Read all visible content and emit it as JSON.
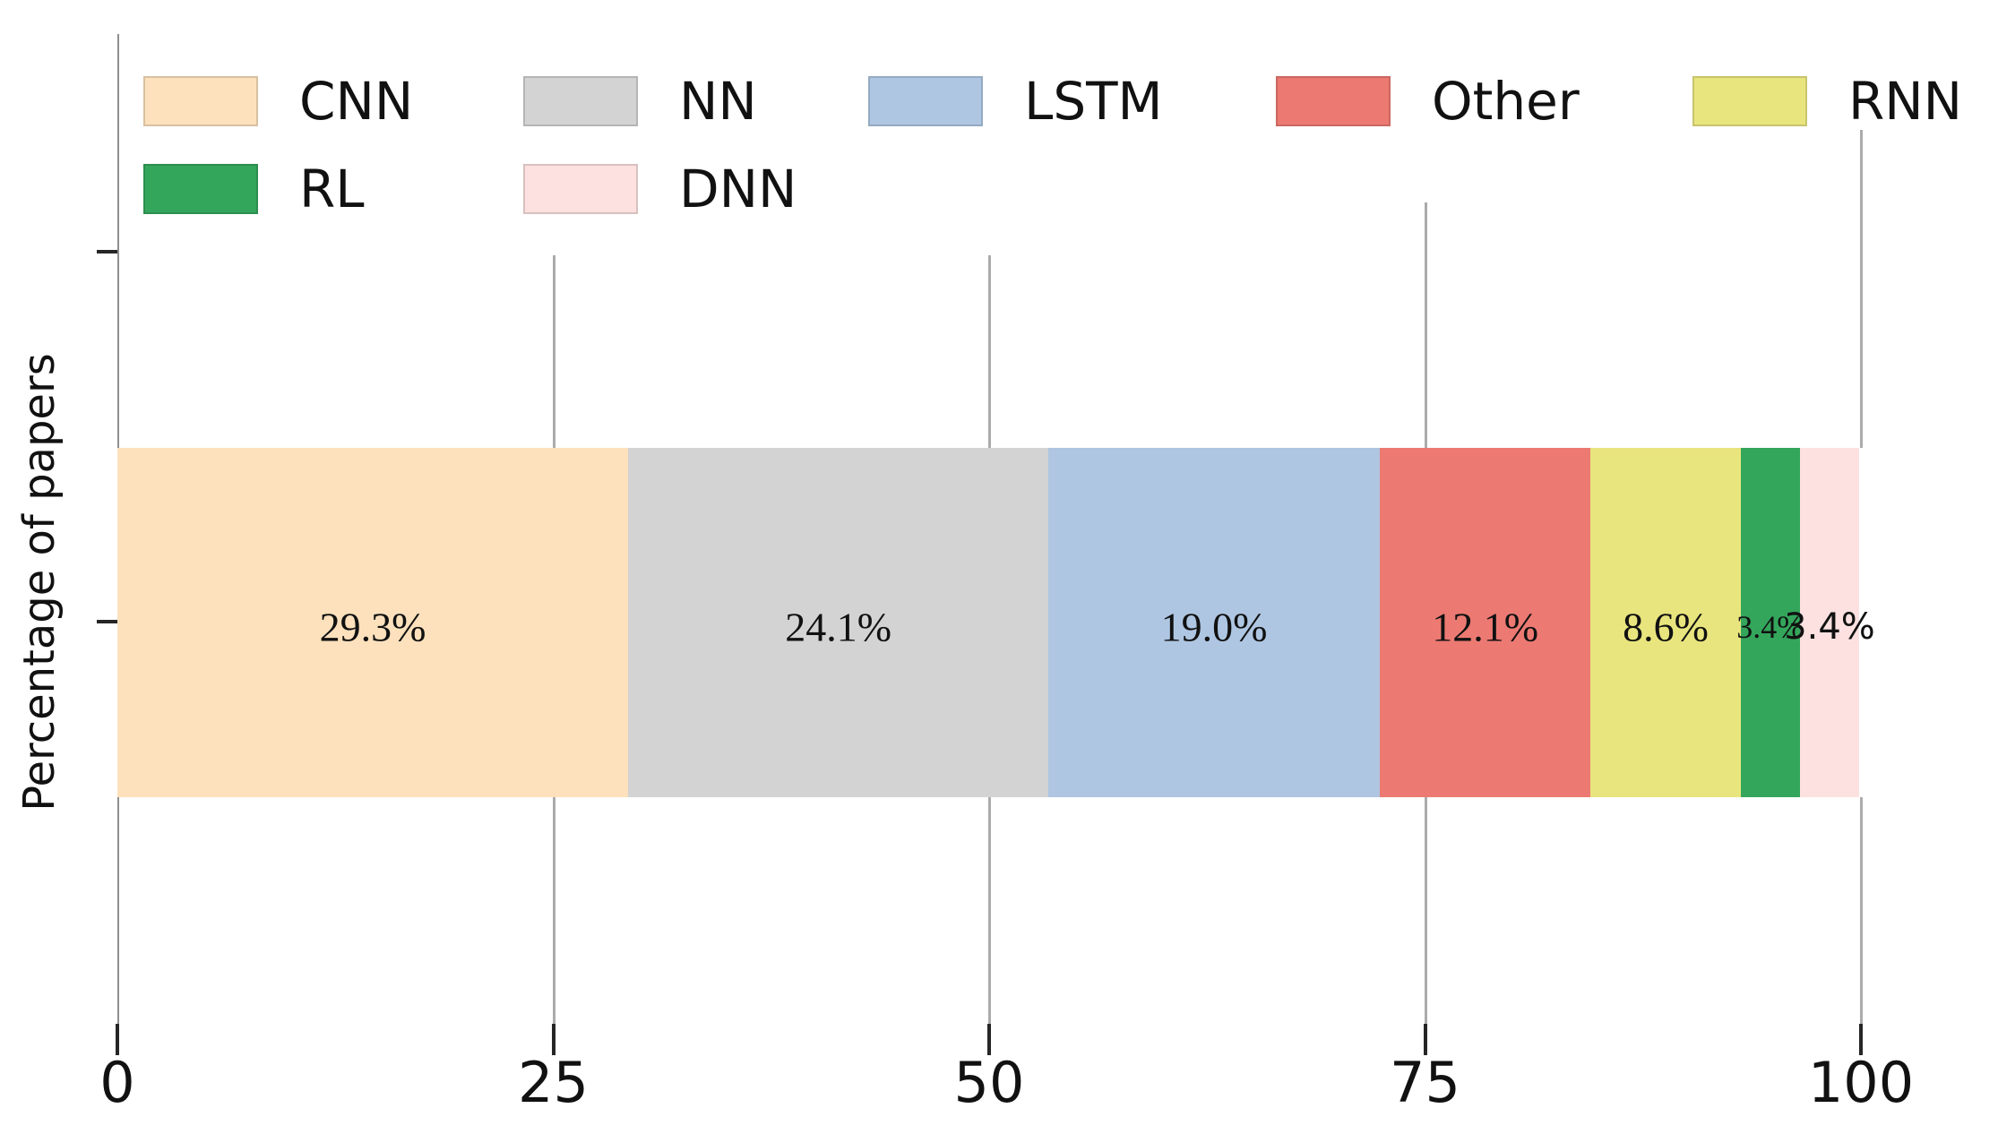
{
  "chart_data": {
    "type": "bar",
    "variant": "horizontal-stacked-single-bar",
    "title": "",
    "ylabel": "Percentage of papers",
    "xlabel": "",
    "xlim": [
      0,
      100
    ],
    "x_ticks": [
      0,
      25,
      50,
      75,
      100
    ],
    "x_tick_labels": [
      "0",
      "25",
      "50",
      "75",
      "100"
    ],
    "grid": "vertical-gridlines-at-25-50-75-100",
    "legend_position": "top, two rows",
    "categories": [
      "CNN",
      "NN",
      "LSTM",
      "Other",
      "RNN",
      "RL",
      "DNN"
    ],
    "values": [
      29.3,
      24.1,
      19.0,
      12.1,
      8.6,
      3.4,
      3.4
    ],
    "value_labels": [
      "29.3%",
      "24.1%",
      "19.0%",
      "12.1%",
      "8.6%",
      "3.4%",
      "3.4%"
    ],
    "colors": [
      "#FCE1BC",
      "#D3D3D3",
      "#AEC6E2",
      "#EC7A72",
      "#E9E57E",
      "#34A65C",
      "#FCE1E0"
    ],
    "legend": {
      "rows": [
        [
          "CNN",
          "NN",
          "LSTM",
          "Other",
          "RNN"
        ],
        [
          "RL",
          "DNN"
        ]
      ]
    }
  }
}
